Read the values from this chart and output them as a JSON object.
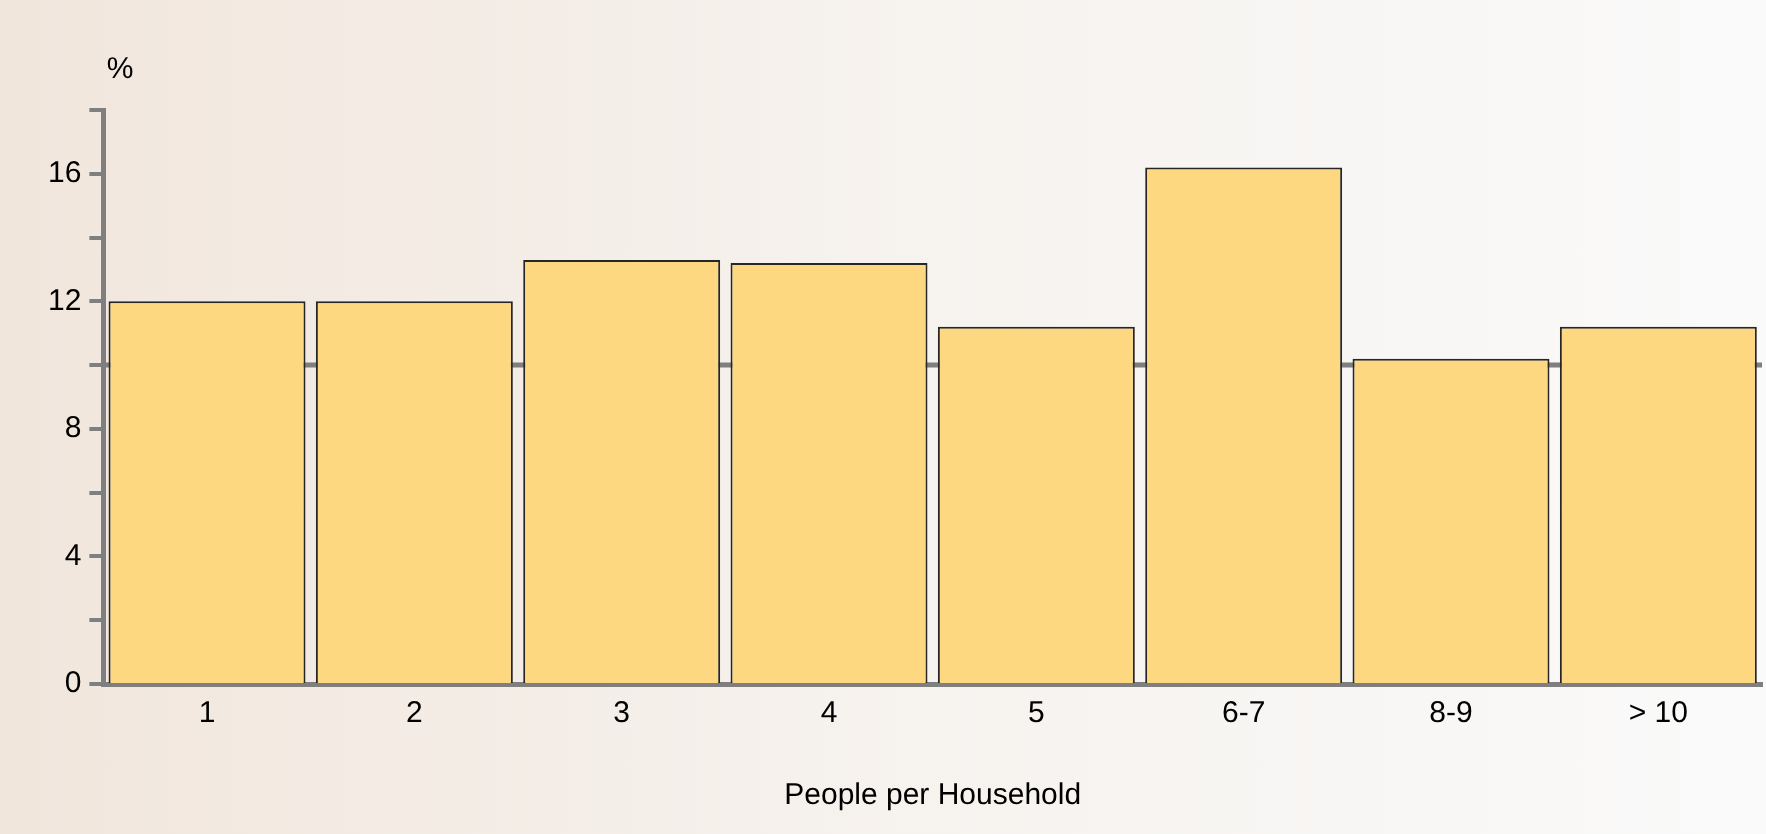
{
  "chart_data": {
    "type": "bar",
    "xlabel": "People per Household",
    "ylabel": "%",
    "categories": [
      "1",
      "2",
      "3",
      "4",
      "5",
      "6-7",
      "8-9",
      "> 10"
    ],
    "values": [
      12.0,
      12.0,
      13.3,
      13.2,
      11.2,
      16.2,
      10.2,
      11.2
    ],
    "color": "#fdd880",
    "ylim": [
      0,
      18
    ],
    "yticks": [
      0,
      {
        "value": 2,
        "label": null
      },
      4,
      {
        "value": 6,
        "label": null
      },
      8,
      {
        "value": 10,
        "label": null
      },
      12,
      {
        "value": 14,
        "label": null
      },
      16,
      {
        "value": 18,
        "label": null
      }
    ],
    "ref_lines": [
      {
        "axis": "y",
        "value": 10,
        "color": "#7f7f7f"
      }
    ],
    "grid": false,
    "legend": false
  }
}
